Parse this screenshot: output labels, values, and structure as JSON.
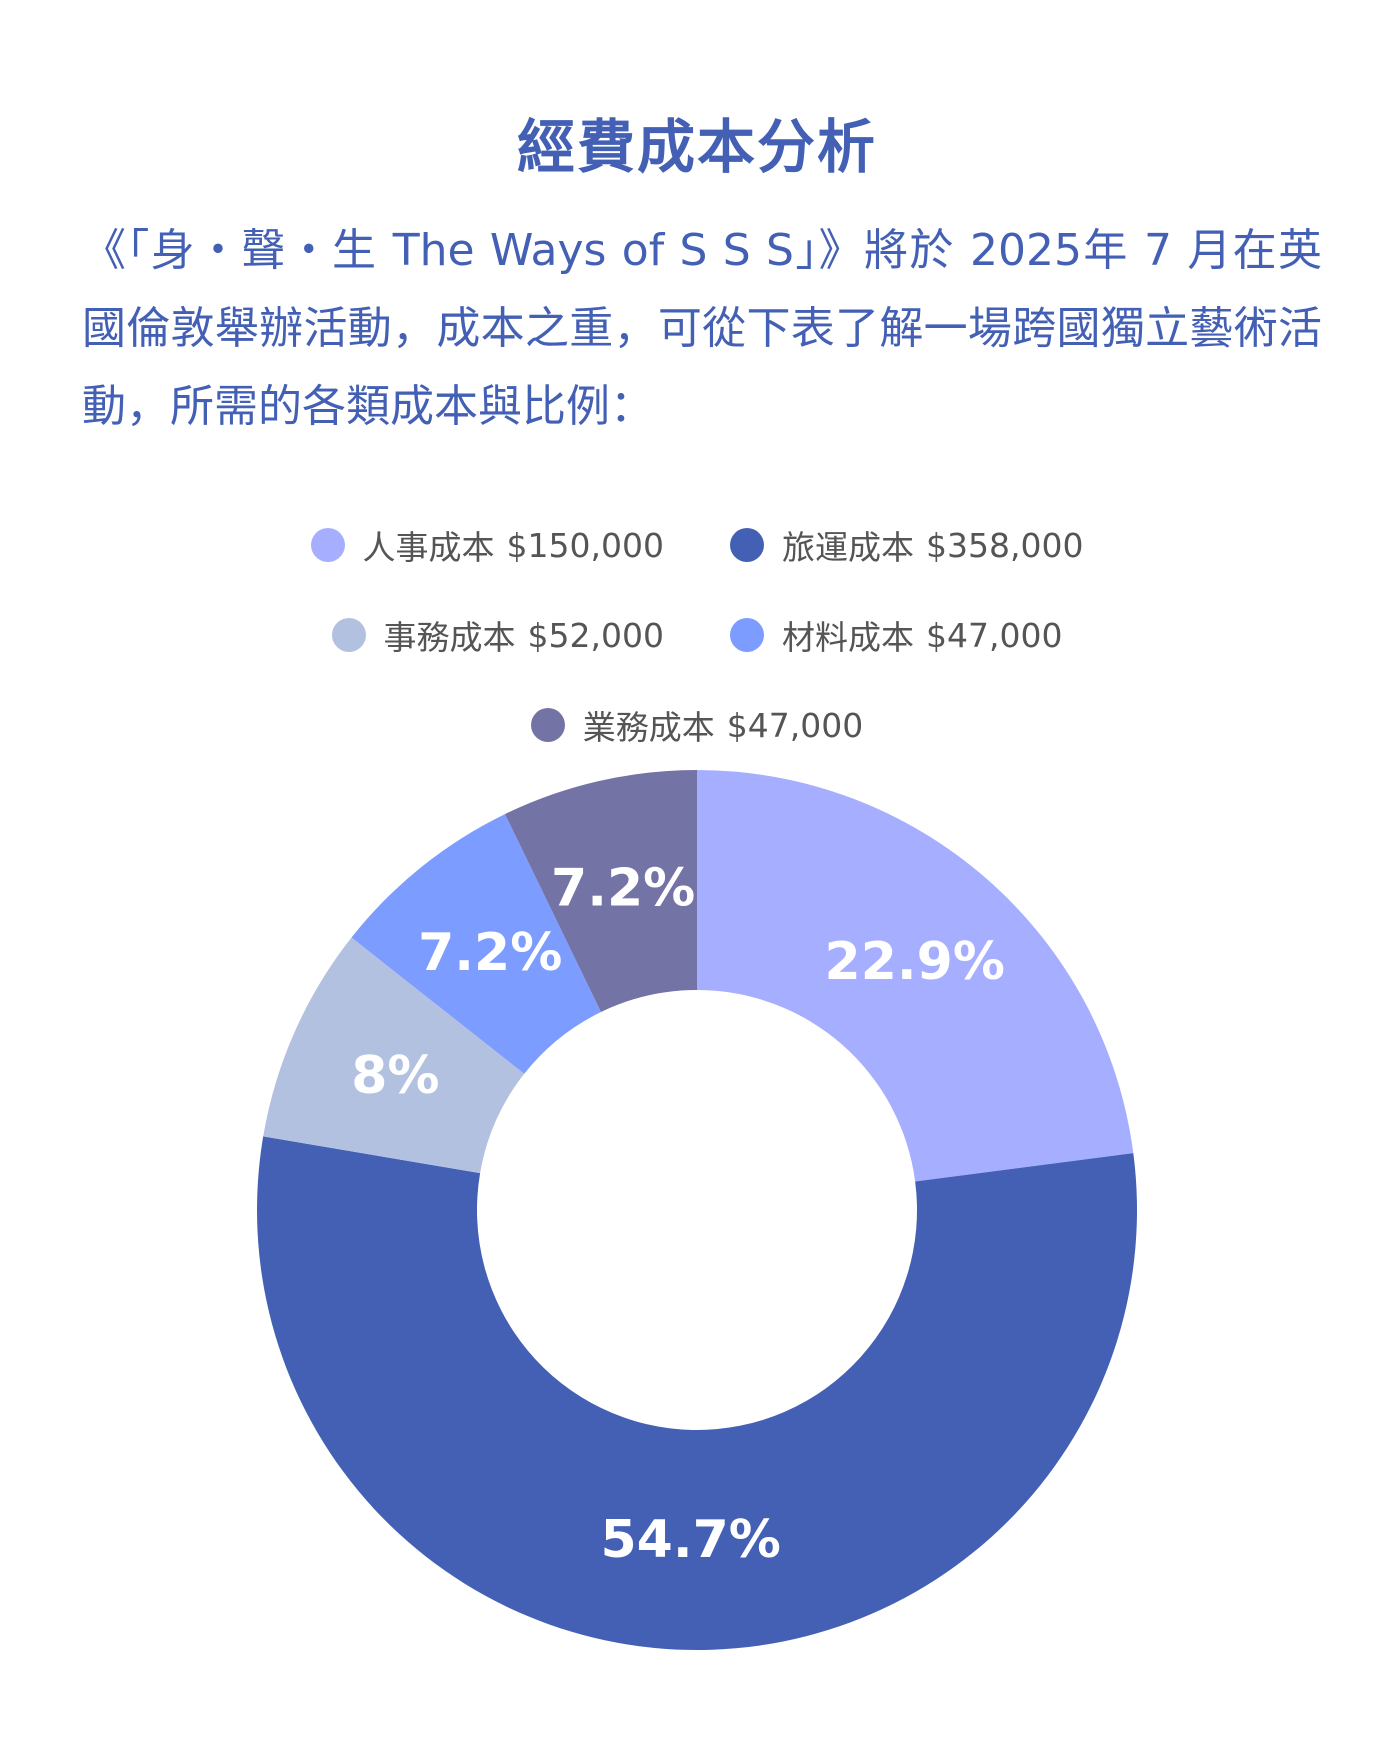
{
  "title": "經費成本分析",
  "intro": "《「身・聲・生 The Ways of S S S」》將於 2025年 7 月在英國倫敦舉辦活動，成本之重，可從下表了解一場跨國獨立藝術活動，所需的各類成本與比例：",
  "chart_data": {
    "type": "pie",
    "donut": true,
    "legend_position": "top",
    "series": [
      {
        "name": "人事成本",
        "value": 150000,
        "value_label": "$150,000",
        "percent_label": "22.9%",
        "color": "#a6aeff"
      },
      {
        "name": "旅運成本",
        "value": 358000,
        "value_label": "$358,000",
        "percent_label": "54.7%",
        "color": "#4360b5"
      },
      {
        "name": "事務成本",
        "value": 52000,
        "value_label": "$52,000",
        "percent_label": "8%",
        "color": "#b3c1e0"
      },
      {
        "name": "材料成本",
        "value": 47000,
        "value_label": "$47,000",
        "percent_label": "7.2%",
        "color": "#7c9cff"
      },
      {
        "name": "業務成本",
        "value": 47000,
        "value_label": "$47,000",
        "percent_label": "7.2%",
        "color": "#7473a6"
      }
    ]
  }
}
